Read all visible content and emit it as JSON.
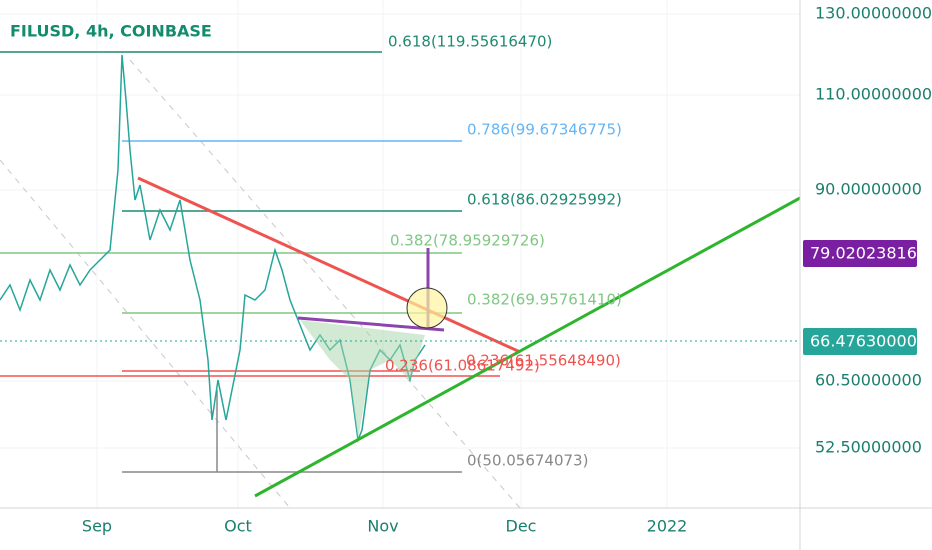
{
  "header": {
    "title": "FILUSD, 4h, COINBASE"
  },
  "price_axis": [
    "130.00000000",
    "110.00000000",
    "90.00000000",
    "60.50000000",
    "52.50000000"
  ],
  "price_tags": [
    "79.02023816",
    "66.47630000"
  ],
  "time_axis": [
    "Sep",
    "Oct",
    "Nov",
    "Dec",
    "2022"
  ],
  "fib_levels": [
    "0.618(119.55616470)",
    "0.786(99.67346775)",
    "0.618(86.02925992)",
    "0.382(78.95929726)",
    "0.382(69.95761410)",
    "0.236(61.08617492)",
    "0.236(61.55648490)",
    "0(50.05674073)"
  ]
}
